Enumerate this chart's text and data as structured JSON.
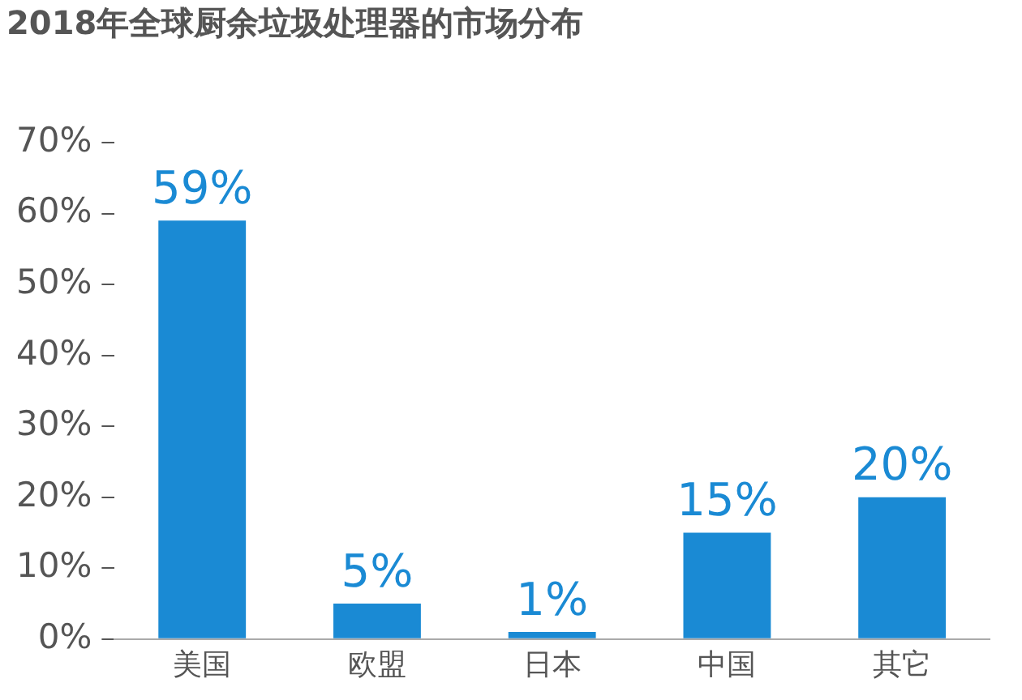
{
  "chart_data": {
    "type": "bar",
    "title": "2018年全球厨余垃圾处理器的市场分布",
    "categories": [
      "美国",
      "欧盟",
      "日本",
      "中国",
      "其它"
    ],
    "values": [
      59,
      5,
      1,
      15,
      20
    ],
    "value_labels": [
      "59%",
      "5%",
      "1%",
      "15%",
      "20%"
    ],
    "color": "#1a8ad4",
    "ylim": [
      0,
      70
    ],
    "yticks": [
      {
        "value": 0,
        "label": "0%"
      },
      {
        "value": 10,
        "label": "10%"
      },
      {
        "value": 20,
        "label": "20%"
      },
      {
        "value": 30,
        "label": "30%"
      },
      {
        "value": 40,
        "label": "40%"
      },
      {
        "value": 50,
        "label": "50%"
      },
      {
        "value": 60,
        "label": "60%"
      },
      {
        "value": 70,
        "label": "70%"
      }
    ],
    "grid": false,
    "legend": false
  }
}
